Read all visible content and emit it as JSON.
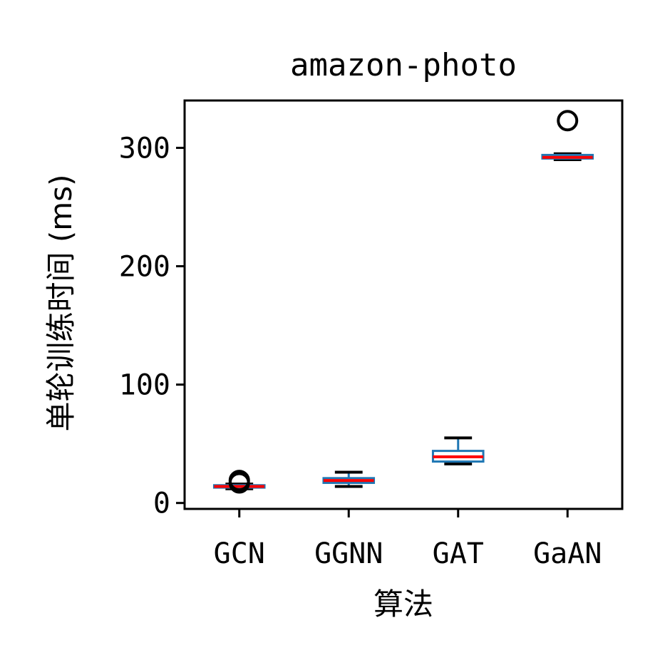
{
  "chart_data": {
    "type": "boxplot",
    "title": "amazon-photo",
    "xlabel": "算法",
    "ylabel": "单轮训练时间 (ms)",
    "ylim": [
      -5,
      340
    ],
    "yticks": [
      0,
      100,
      200,
      300
    ],
    "grid": false,
    "categories": [
      "GCN",
      "GGNN",
      "GAT",
      "GaAN"
    ],
    "boxes": [
      {
        "category": "GCN",
        "whislo": 12,
        "q1": 13,
        "median": 14,
        "q3": 15,
        "whishi": 16,
        "fliers": [
          19,
          17
        ]
      },
      {
        "category": "GGNN",
        "whislo": 14,
        "q1": 17,
        "median": 19,
        "q3": 21,
        "whishi": 26,
        "fliers": []
      },
      {
        "category": "GAT",
        "whislo": 33,
        "q1": 35,
        "median": 39,
        "q3": 44,
        "whishi": 55,
        "fliers": []
      },
      {
        "category": "GaAN",
        "whislo": 290,
        "q1": 291,
        "median": 292,
        "q3": 294,
        "whishi": 295,
        "fliers": [
          323
        ]
      }
    ],
    "colors": {
      "box": "#1f77b4",
      "median": "#ff0000",
      "whisker_cap": "#000000",
      "flier": "#000000"
    }
  }
}
